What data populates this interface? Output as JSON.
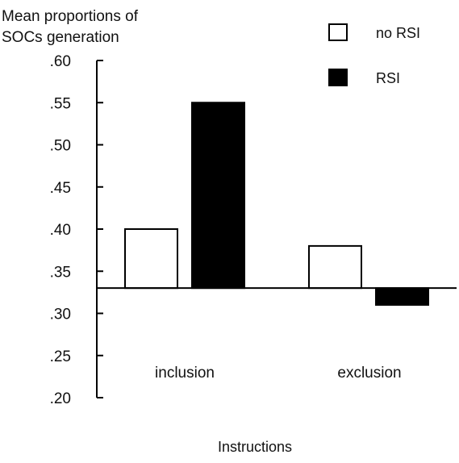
{
  "chart_data": {
    "type": "bar",
    "ylabel_lines": [
      "Mean proportions of",
      "SOCs generation"
    ],
    "xlabel": "Instructions",
    "categories": [
      "inclusion",
      "exclusion"
    ],
    "series": [
      {
        "name": "no RSI",
        "values": [
          0.4,
          0.38
        ],
        "fill": "#ffffff"
      },
      {
        "name": "RSI",
        "values": [
          0.55,
          0.31
        ],
        "fill": "#000000"
      }
    ],
    "ylim": [
      0.2,
      0.6
    ],
    "yticks": [
      0.2,
      0.25,
      0.3,
      0.35,
      0.4,
      0.45,
      0.5,
      0.55,
      0.6
    ],
    "ytick_labels": [
      ".20",
      ".25",
      ".30",
      ".35",
      ".40",
      ".45",
      ".50",
      ".55",
      ".60"
    ],
    "baseline": 0.33,
    "grid": false,
    "legend_position": "top-right"
  }
}
